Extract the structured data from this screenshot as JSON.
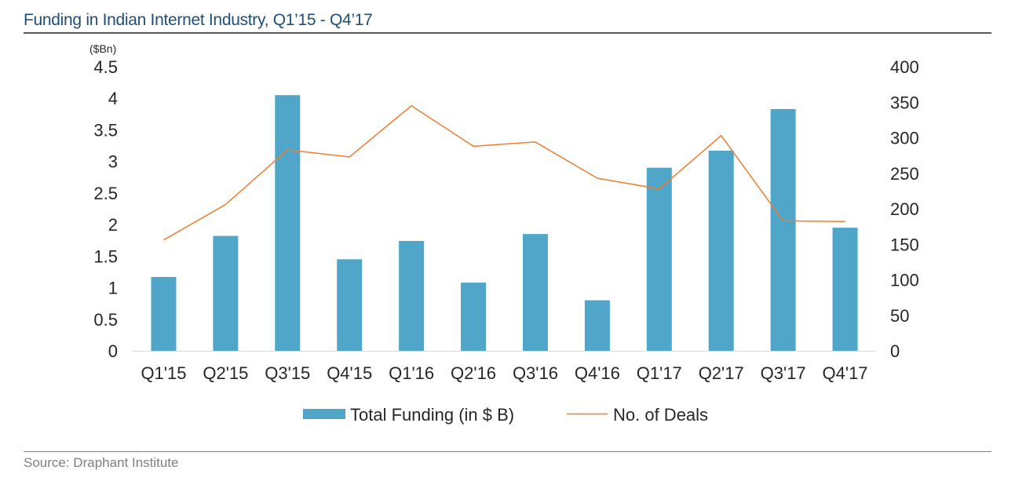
{
  "header": {
    "title": "Funding in Indian Internet Industry, Q1’15 - Q4’17"
  },
  "footer": {
    "source": "Source: Draphant Institute"
  },
  "chart_data": {
    "type": "bar+line",
    "title": "Funding in Indian Internet Industry, Q1’15 - Q4’17",
    "y_unit_label": "($Bn)",
    "categories": [
      "Q1'15",
      "Q2'15",
      "Q3'15",
      "Q4'15",
      "Q1'16",
      "Q2'16",
      "Q3'16",
      "Q4'16",
      "Q1'17",
      "Q2'17",
      "Q3'17",
      "Q4'17"
    ],
    "series": [
      {
        "name": "Total Funding (in $ B)",
        "type": "bar",
        "axis": "left",
        "color": "#4fa6c9",
        "values": [
          1.17,
          1.82,
          4.05,
          1.45,
          1.74,
          1.08,
          1.85,
          0.8,
          2.9,
          3.17,
          3.83,
          1.95
        ]
      },
      {
        "name": "No. of Deals",
        "type": "line",
        "axis": "right",
        "color": "#ed7d31",
        "values": [
          156,
          206,
          283,
          273,
          345,
          288,
          294,
          243,
          228,
          303,
          183,
          182
        ]
      }
    ],
    "y_left": {
      "ylim": [
        0,
        4.5
      ],
      "ticks": [
        "0",
        "0.5",
        "1",
        "1.5",
        "2",
        "2.5",
        "3",
        "3.5",
        "4",
        "4.5"
      ]
    },
    "y_right": {
      "ylim": [
        0,
        400
      ],
      "ticks": [
        "0",
        "50",
        "100",
        "150",
        "200",
        "250",
        "300",
        "350",
        "400"
      ]
    },
    "grid": false,
    "legend_position": "bottom"
  }
}
